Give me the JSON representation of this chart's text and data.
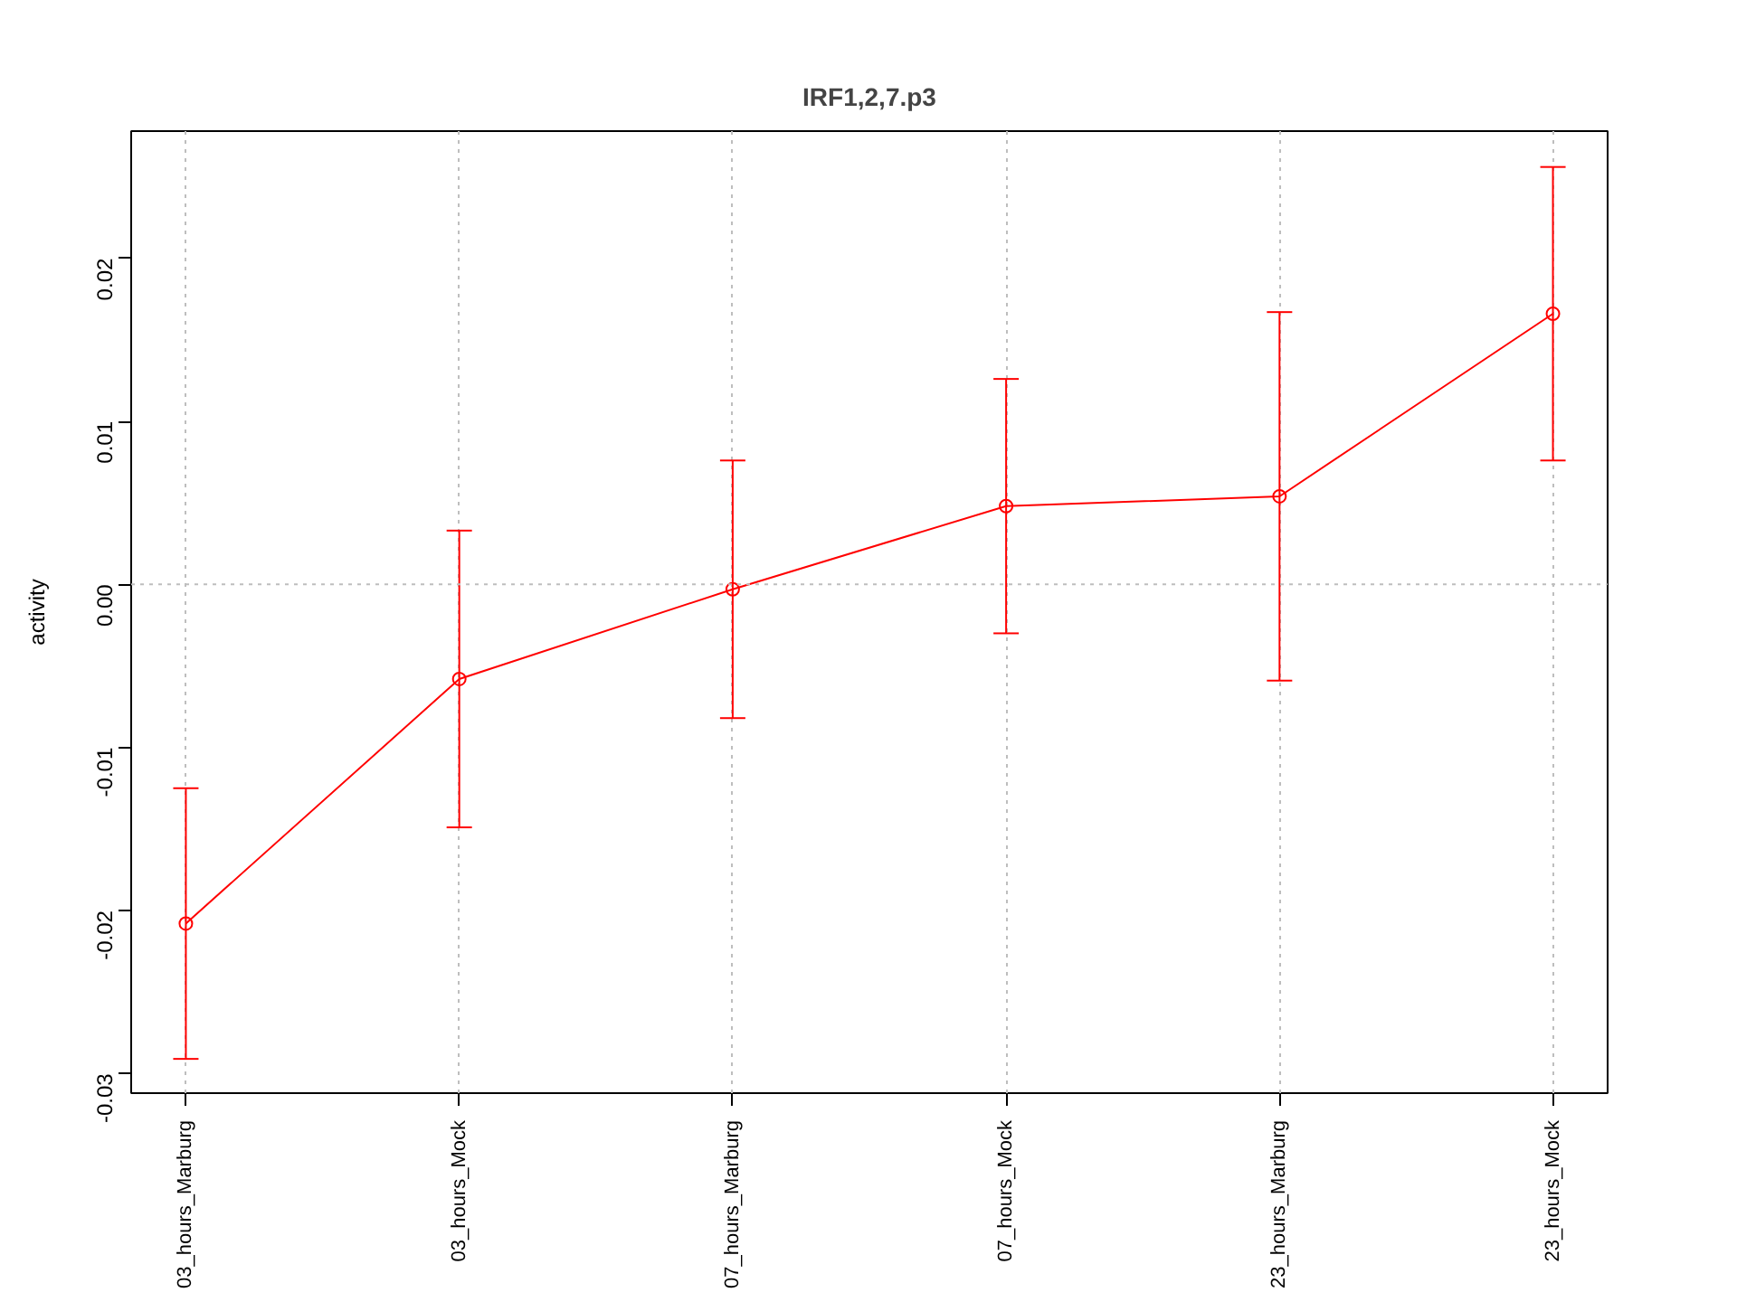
{
  "chart_data": {
    "type": "line",
    "title": "IRF1,2,7.p3",
    "ylabel": "activity",
    "categories": [
      "03_hours_Marburg",
      "03_hours_Mock",
      "07_hours_Marburg",
      "07_hours_Mock",
      "23_hours_Marburg",
      "23_hours_Mock"
    ],
    "values": [
      -0.0208,
      -0.0058,
      -0.0003,
      0.0048,
      0.0054,
      0.0166
    ],
    "errors": [
      0.0083,
      0.0091,
      0.0079,
      0.0078,
      0.0113,
      0.009
    ],
    "color": "#ff0000",
    "marker": "circle",
    "line_style": "solid",
    "ylim": [
      -0.0312,
      0.0278
    ],
    "yticks": [
      -0.03,
      -0.02,
      -0.01,
      {
        "value": 0,
        "label": "0.00"
      },
      0.01,
      0.02
    ],
    "grid": "x",
    "ref_lines": [
      {
        "axis": "y",
        "value": 0,
        "color": "#bebebe",
        "line_style": "dotted"
      }
    ]
  }
}
